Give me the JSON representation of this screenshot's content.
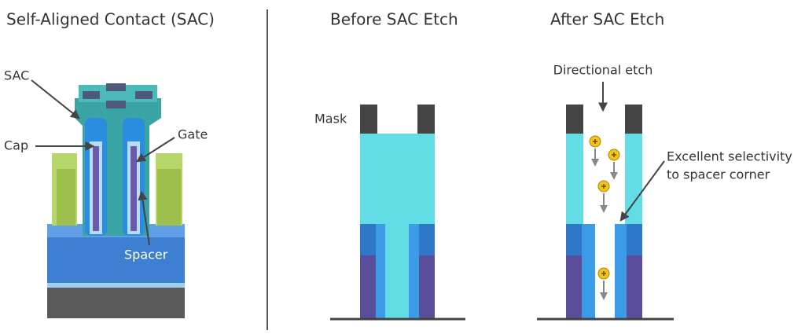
{
  "left": {
    "title": "Self-Aligned Contact (SAC)",
    "labels": {
      "sac": "SAC",
      "cap": "Cap",
      "gate": "Gate",
      "spacer": "Spacer"
    }
  },
  "middle": {
    "title": "Before SAC Etch",
    "mask": "Mask"
  },
  "right": {
    "title": "After SAC Etch",
    "etch": "Directional etch",
    "selectivity": [
      "Excellent selectivity",
      "to spacer corner"
    ]
  }
}
